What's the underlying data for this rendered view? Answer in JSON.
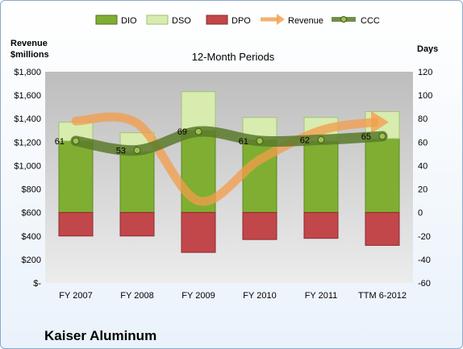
{
  "chart_data": {
    "type": "bar",
    "subtitle": "12-Month Periods",
    "company": "Kaiser Aluminum",
    "left_axis_label": [
      "Revenue",
      "$millions"
    ],
    "right_axis_label": "Days",
    "categories": [
      "FY 2007",
      "FY 2008",
      "FY 2009",
      "FY 2010",
      "FY 2011",
      "TTM 6-2012"
    ],
    "left_ticks": [
      "$-",
      "$200",
      "$400",
      "$600",
      "$800",
      "$1,000",
      "$1,200",
      "$1,400",
      "$1,600",
      "$1,800"
    ],
    "right_ticks": [
      "-60",
      "-40",
      "-20",
      "0",
      "20",
      "40",
      "60",
      "80",
      "100",
      "120"
    ],
    "ylim_left": [
      0,
      1800
    ],
    "ylim_right": [
      -60,
      120
    ],
    "series": [
      {
        "name": "DIO",
        "axis": "right",
        "kind": "bar",
        "color": "#7fae32",
        "values": [
          61,
          52,
          70,
          62,
          61,
          63
        ]
      },
      {
        "name": "DSO",
        "axis": "right",
        "kind": "bar",
        "color": "#d8ecb0",
        "values": [
          16,
          16,
          33,
          19,
          20,
          23
        ]
      },
      {
        "name": "DPO",
        "axis": "right",
        "kind": "bar",
        "color": "#c2474b",
        "values": [
          -20,
          -20,
          -34,
          -23,
          -22,
          -28
        ]
      },
      {
        "name": "Revenue",
        "axis": "left",
        "kind": "line",
        "color": "#f39c4a",
        "values": [
          1380,
          1360,
          700,
          1050,
          1300,
          1370
        ]
      },
      {
        "name": "CCC",
        "axis": "right",
        "kind": "line",
        "color": "#5b7a2a",
        "values": [
          61,
          53,
          69,
          61,
          62,
          65
        ],
        "labels": [
          "61",
          "53",
          "69",
          "61",
          "62",
          "65"
        ]
      }
    ],
    "legend_position": "top",
    "grid": false
  }
}
